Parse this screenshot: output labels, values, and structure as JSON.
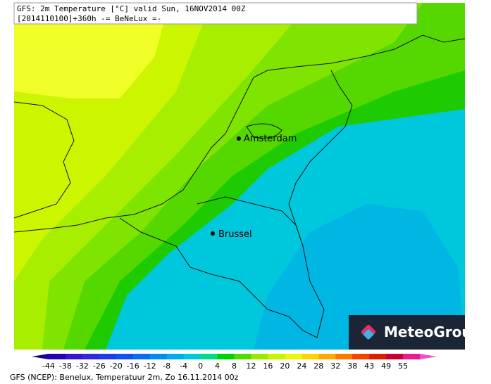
{
  "header": {
    "line1": "GFS: 2m Temperature [°C] valid Sun, 16NOV2014 00Z",
    "line2": "[2014110100]+360h -= BeNeLux =-"
  },
  "cities": [
    {
      "name": "Amsterdam"
    },
    {
      "name": "Brussel"
    }
  ],
  "logo": "MeteoGroup",
  "colorbar": {
    "ticks": [
      -44,
      -38,
      -32,
      -26,
      -20,
      -16,
      -12,
      -8,
      -4,
      0,
      4,
      8,
      12,
      16,
      20,
      24,
      28,
      32,
      38,
      43,
      49,
      55
    ],
    "colors": [
      "#1a0096",
      "#2800b4",
      "#3c14c8",
      "#3228dc",
      "#1e3ce6",
      "#1450f0",
      "#0a6ef0",
      "#008cf0",
      "#00aaeb",
      "#00c8dc",
      "#00dc8c",
      "#00d200",
      "#50dc00",
      "#96eb00",
      "#c8f500",
      "#f0f500",
      "#ffd200",
      "#ffaa00",
      "#ff7800",
      "#f04600",
      "#dc1e00",
      "#c80032",
      "#e61e96",
      "#f050c8"
    ]
  },
  "footer": "GFS (NCEP): Benelux, Temperatuur 2m, Zo 16.11.2014 00z"
}
